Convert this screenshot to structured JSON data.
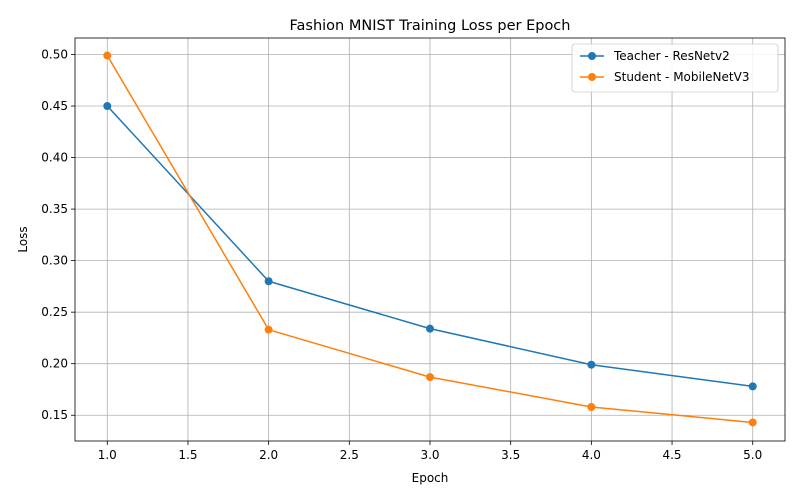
{
  "chart_data": {
    "type": "line",
    "title": "Fashion MNIST Training Loss per Epoch",
    "xlabel": "Epoch",
    "ylabel": "Loss",
    "x": [
      1,
      2,
      3,
      4,
      5
    ],
    "xlim": [
      0.8,
      5.2
    ],
    "ylim": [
      0.125,
      0.516
    ],
    "x_ticks": [
      "1.0",
      "1.5",
      "2.0",
      "2.5",
      "3.0",
      "3.5",
      "4.0",
      "4.5",
      "5.0"
    ],
    "y_ticks": [
      "0.15",
      "0.20",
      "0.25",
      "0.30",
      "0.35",
      "0.40",
      "0.45",
      "0.50"
    ],
    "grid": true,
    "legend_position": "top-right",
    "marker": "circle",
    "series": [
      {
        "name": "Teacher - ResNetv2",
        "color": "#1f77b4",
        "values": [
          0.45,
          0.28,
          0.234,
          0.199,
          0.178
        ]
      },
      {
        "name": "Student - MobileNetV3",
        "color": "#ff7f0e",
        "values": [
          0.499,
          0.233,
          0.187,
          0.158,
          0.143
        ]
      }
    ]
  }
}
